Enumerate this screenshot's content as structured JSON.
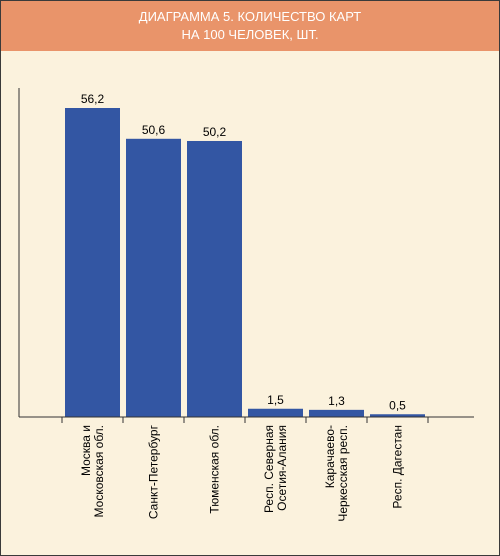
{
  "chart_data": {
    "type": "bar",
    "title_line1": "ДИАГРАММА 5. КОЛИЧЕСТВО КАРТ",
    "title_line2": "НА 100 ЧЕЛОВЕК, ШТ.",
    "categories": [
      [
        "Москва и",
        "Московская обл."
      ],
      [
        "Санкт-Петербург"
      ],
      [
        "Тюменская обл."
      ],
      [
        "Респ. Северная",
        "Осетия-Алания"
      ],
      [
        "Карачаево-",
        "Черкесская респ."
      ],
      [
        "Респ. Дагестан"
      ]
    ],
    "values": [
      56.2,
      50.6,
      50.2,
      1.5,
      1.3,
      0.5
    ],
    "value_labels": [
      "56,2",
      "50,6",
      "50,2",
      "1,5",
      "1,3",
      "0,5"
    ],
    "ylim": [
      0,
      60
    ],
    "bar_color": "#3356a3",
    "header_color": "#e9946a",
    "background_color": "#fbf2dd",
    "grid": false
  }
}
